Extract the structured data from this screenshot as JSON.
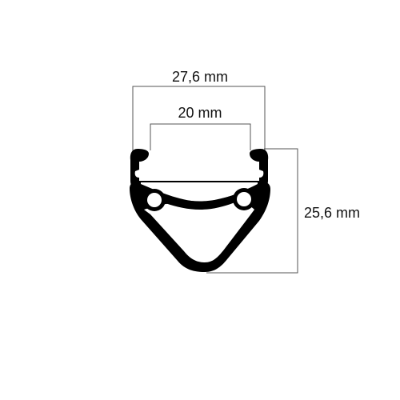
{
  "dimensions": {
    "outer_width": "27,6 mm",
    "inner_width": "20 mm",
    "height": "25,6 mm"
  },
  "colors": {
    "rim": "#000000",
    "dimension_lines": "#555555",
    "text": "#111111",
    "background": "#ffffff"
  }
}
